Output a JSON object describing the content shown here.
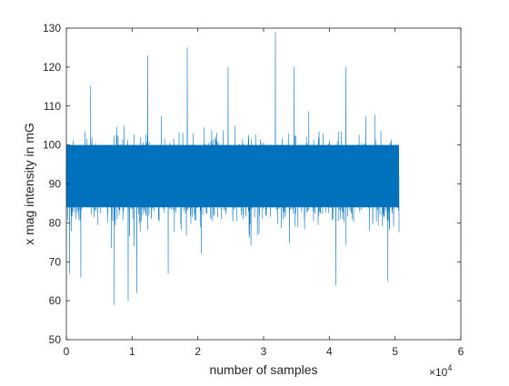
{
  "chart_data": {
    "type": "line",
    "title": "",
    "xlabel": "number of samples",
    "ylabel": "x mag intensity in mG",
    "x_exponent_label": "×10",
    "x_exponent_power": "4",
    "xlim": [
      0,
      60000
    ],
    "ylim": [
      50,
      130
    ],
    "x_ticks": [
      0,
      10000,
      20000,
      30000,
      40000,
      50000,
      60000
    ],
    "x_tick_labels": [
      "0",
      "1",
      "2",
      "3",
      "4",
      "5",
      "6"
    ],
    "y_ticks": [
      50,
      60,
      70,
      80,
      90,
      100,
      110,
      120,
      130
    ],
    "y_tick_labels": [
      "50",
      "60",
      "70",
      "80",
      "90",
      "100",
      "110",
      "120",
      "130"
    ],
    "grid": false,
    "line_color": "#0072bd",
    "series": [
      {
        "n_samples": 50600,
        "mean": 91,
        "core_band": [
          84,
          100
        ],
        "envelope": [
          75,
          107
        ],
        "spikes": [
          {
            "x": 500,
            "y": 67
          },
          {
            "x": 2200,
            "y": 66
          },
          {
            "x": 3700,
            "y": 115
          },
          {
            "x": 7300,
            "y": 59
          },
          {
            "x": 9400,
            "y": 60
          },
          {
            "x": 10700,
            "y": 62
          },
          {
            "x": 12400,
            "y": 123
          },
          {
            "x": 15500,
            "y": 67
          },
          {
            "x": 18400,
            "y": 125
          },
          {
            "x": 24600,
            "y": 120
          },
          {
            "x": 31800,
            "y": 129
          },
          {
            "x": 34600,
            "y": 120
          },
          {
            "x": 41000,
            "y": 64
          },
          {
            "x": 42500,
            "y": 120
          },
          {
            "x": 48900,
            "y": 65
          }
        ]
      }
    ]
  }
}
